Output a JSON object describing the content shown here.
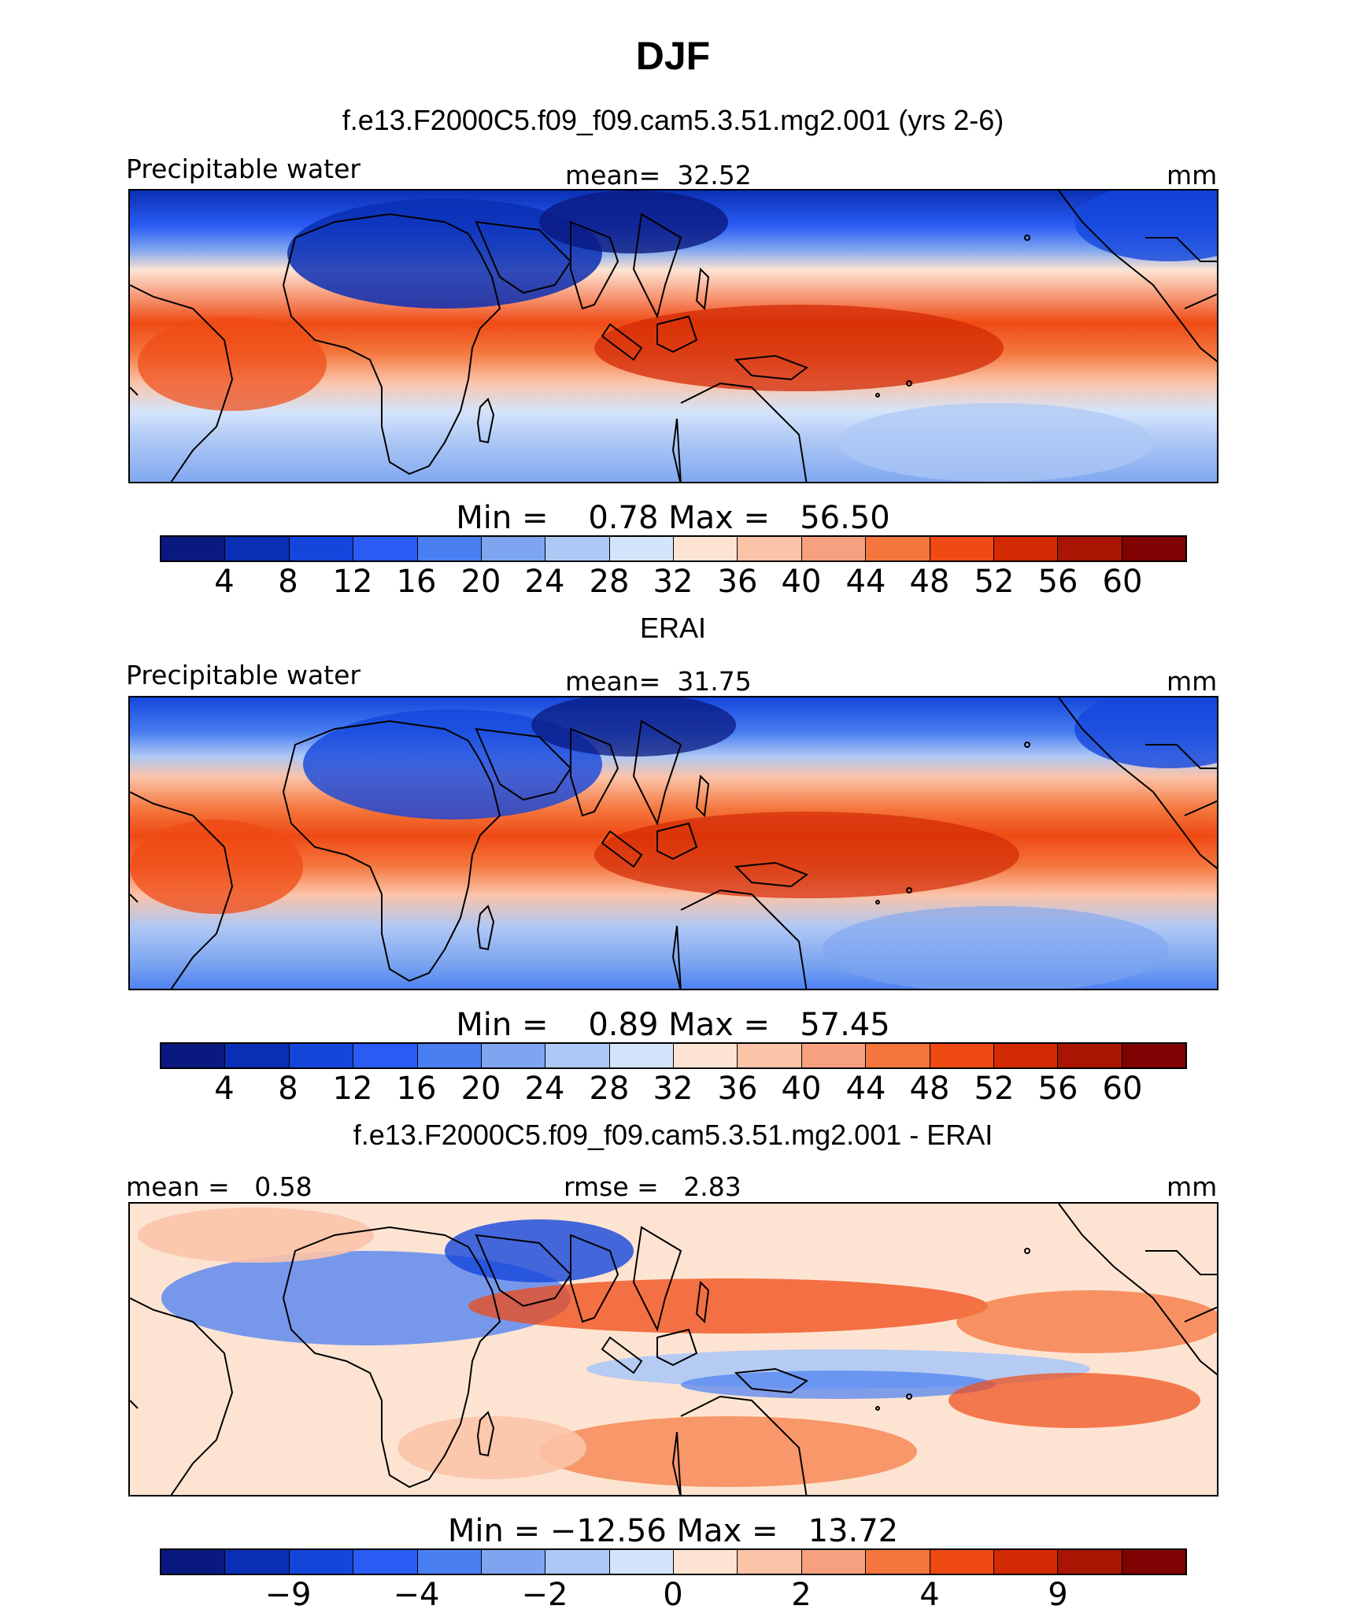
{
  "title": "DJF",
  "colors": {
    "abs": [
      "#0a1980",
      "#0a2fb4",
      "#1446dc",
      "#2a5cf5",
      "#4a7ff2",
      "#7da5f0",
      "#aec8f5",
      "#d4e4fa",
      "#fde4d2",
      "#fbc3a8",
      "#f7a080",
      "#f4763d",
      "#ef4a14",
      "#d32a04",
      "#a81503",
      "#800202"
    ],
    "diff": [
      "#0a1980",
      "#0a2fb4",
      "#1446dc",
      "#2a5cf5",
      "#4a7ff2",
      "#7da5f0",
      "#aec8f5",
      "#d4e4fa",
      "#fde4d2",
      "#fbc3a8",
      "#f7a080",
      "#f4763d",
      "#ef4a14",
      "#d32a04",
      "#a81503",
      "#800202"
    ]
  },
  "panels": [
    {
      "title": "f.e13.F2000C5.f09_f09.cam5.3.51.mg2.001 (yrs 2-6)",
      "left_label": "Precipitable water",
      "center_label": "mean=  32.52",
      "units": "mm",
      "min_max": "Min =    0.78 Max =   56.50",
      "ticks": [
        "4",
        "8",
        "12",
        "16",
        "20",
        "24",
        "28",
        "32",
        "36",
        "40",
        "44",
        "48",
        "52",
        "56",
        "60"
      ]
    },
    {
      "title": "ERAI",
      "left_label": "Precipitable water",
      "center_label": "mean=  31.75",
      "units": "mm",
      "min_max": "Min =    0.89 Max =   57.45",
      "ticks": [
        "4",
        "8",
        "12",
        "16",
        "20",
        "24",
        "28",
        "32",
        "36",
        "40",
        "44",
        "48",
        "52",
        "56",
        "60"
      ]
    },
    {
      "title": "f.e13.F2000C5.f09_f09.cam5.3.51.mg2.001 - ERAI",
      "left_label": "mean =   0.58",
      "center_label": "rmse =   2.83",
      "units": "mm",
      "min_max": "Min = −12.56 Max =   13.72",
      "ticks": [
        "−9",
        "−4",
        "−2",
        "0",
        "2",
        "4",
        "9"
      ]
    }
  ]
}
